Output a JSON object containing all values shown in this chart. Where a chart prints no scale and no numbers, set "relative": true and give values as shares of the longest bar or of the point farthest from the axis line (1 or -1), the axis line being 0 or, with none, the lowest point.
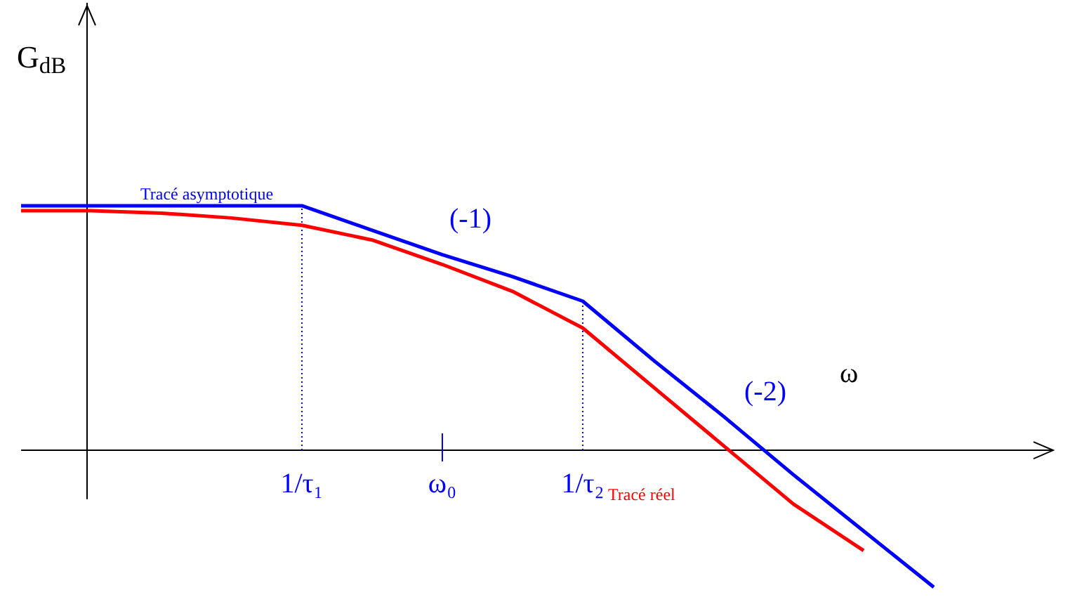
{
  "chart_data": {
    "type": "line",
    "relative": true,
    "ylabel": "G$_{dB}$",
    "xlabel": "ω",
    "categories": [
      null,
      null,
      null,
      null,
      "1/τ₁",
      null,
      "ω₀",
      null,
      "1/τ₂",
      null,
      null,
      null,
      null,
      null
    ],
    "series": [
      {
        "name": "Tracé asymptotique",
        "color": "#0000ff",
        "values": [
          1,
          1,
          1,
          1,
          1,
          0.9,
          0.8,
          0.71,
          0.61,
          0.37,
          0.14,
          -0.1,
          -0.33,
          -0.56
        ]
      },
      {
        "name": "Tracé réel",
        "color": "#ff0000",
        "values": [
          0.98,
          0.98,
          0.97,
          0.95,
          0.92,
          0.86,
          0.76,
          0.65,
          0.5,
          0.26,
          0.02,
          -0.22,
          -0.41,
          null
        ]
      }
    ],
    "ref_lines": [
      {
        "axis": "x",
        "value": "1/τ₁",
        "color": "#0000ff",
        "line_style": "dotted"
      },
      {
        "axis": "x",
        "value": "1/τ₂",
        "color": "#0000ff",
        "line_style": "dotted"
      }
    ],
    "annotations": [
      "(-1)",
      "(-2)"
    ],
    "marker": "none",
    "line_style": "solid"
  }
}
